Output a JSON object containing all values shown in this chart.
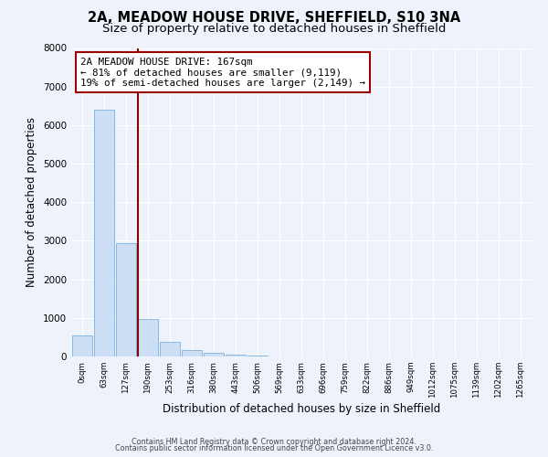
{
  "title": "2A, MEADOW HOUSE DRIVE, SHEFFIELD, S10 3NA",
  "subtitle": "Size of property relative to detached houses in Sheffield",
  "xlabel": "Distribution of detached houses by size in Sheffield",
  "ylabel": "Number of detached properties",
  "bar_labels": [
    "0sqm",
    "63sqm",
    "127sqm",
    "190sqm",
    "253sqm",
    "316sqm",
    "380sqm",
    "443sqm",
    "506sqm",
    "569sqm",
    "633sqm",
    "696sqm",
    "759sqm",
    "822sqm",
    "886sqm",
    "949sqm",
    "1012sqm",
    "1075sqm",
    "1139sqm",
    "1202sqm",
    "1265sqm"
  ],
  "bar_values": [
    550,
    6400,
    2950,
    980,
    375,
    175,
    90,
    50,
    20,
    10,
    5,
    0,
    0,
    0,
    0,
    0,
    0,
    0,
    0,
    0,
    0
  ],
  "bar_color": "#ccdff5",
  "bar_edge_color": "#89b8e0",
  "vline_x": 2.54,
  "vline_color": "#8b0000",
  "ylim": [
    0,
    8000
  ],
  "annotation_title": "2A MEADOW HOUSE DRIVE: 167sqm",
  "annotation_line1": "← 81% of detached houses are smaller (9,119)",
  "annotation_line2": "19% of semi-detached houses are larger (2,149) →",
  "annotation_box_color": "#ffffff",
  "annotation_box_edge": "#990000",
  "footer1": "Contains HM Land Registry data © Crown copyright and database right 2024.",
  "footer2": "Contains public sector information licensed under the Open Government Licence v3.0.",
  "background_color": "#eef2fa",
  "grid_color": "#ffffff",
  "title_fontsize": 10.5,
  "subtitle_fontsize": 9.5
}
